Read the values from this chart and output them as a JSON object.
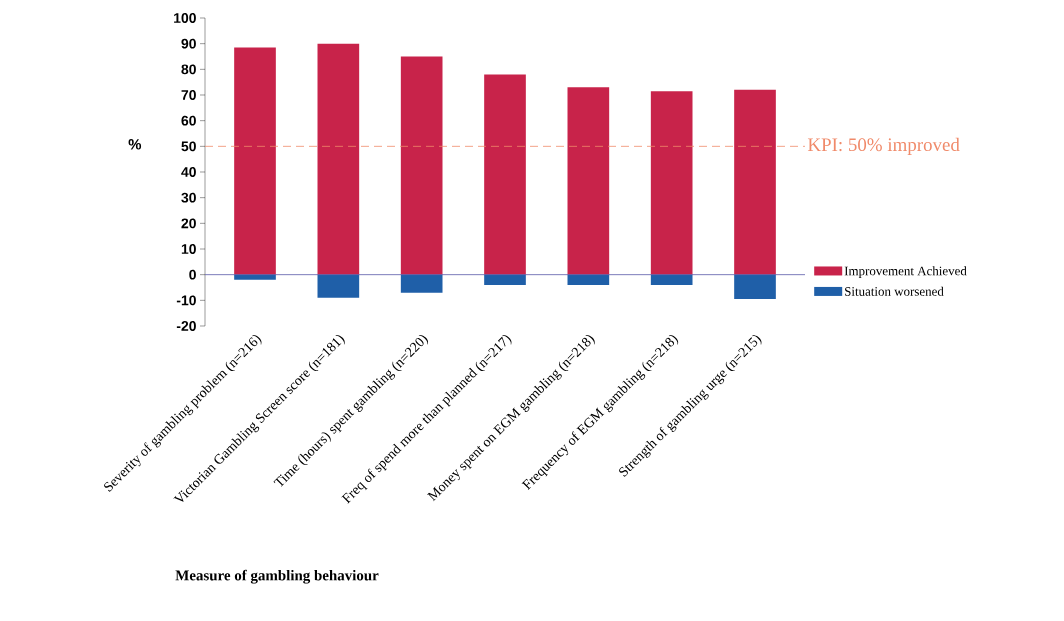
{
  "chart_data": {
    "type": "bar",
    "xlabel": "Measure of gambling behaviour",
    "ylabel": "%",
    "categories": [
      "Severity of gambling problem (n=216)",
      "Victorian Gambling Screen score (n=181)",
      "Time (hours) spent gambling (n=220)",
      "Freq of spend more than planned (n=217)",
      "Money spent on EGM gambling (n=218)",
      "Frequency of EGM gambling (n=218)",
      "Strength of gambling urge (n=215)"
    ],
    "series": [
      {
        "name": "Improvement Achieved",
        "color": "#c8234a",
        "values": [
          88.5,
          90,
          85,
          78,
          73,
          71.5,
          72
        ]
      },
      {
        "name": "Situation worsened",
        "color": "#1f5fa8",
        "values": [
          -2,
          -9,
          -7,
          -4,
          -4,
          -4,
          -9.5
        ]
      }
    ],
    "ylim": [
      -20,
      100
    ],
    "yticks": [
      -20,
      -10,
      0,
      10,
      20,
      30,
      40,
      50,
      60,
      70,
      80,
      90,
      100
    ],
    "ref_lines": [
      {
        "axis": "y",
        "value": 0,
        "color": "#5a5aa8",
        "line_style": "solid"
      },
      {
        "axis": "y",
        "value": 50,
        "label": "KPI:  50% improved",
        "color": "#f08a6a",
        "line_style": "dashed"
      }
    ],
    "legend": "right",
    "grid": false,
    "stacked": true
  }
}
